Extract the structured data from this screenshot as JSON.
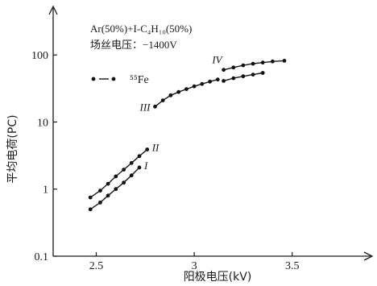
{
  "chart_data": {
    "type": "line",
    "annotations": [
      "Ar(50%)+I-C₄H₁₀(50%)",
      "场丝电压：−1400V"
    ],
    "xlabel": "阳极电压(kV)",
    "ylabel": "平均电荷(PC)",
    "x_ticks": [
      {
        "value": 2.5,
        "label": "2.5"
      },
      {
        "value": 3.0,
        "label": "3"
      },
      {
        "value": 3.5,
        "label": "3.5"
      }
    ],
    "y_scale": "log",
    "y_ticks": [
      {
        "value": 0.1,
        "label": "0.1"
      },
      {
        "value": 1,
        "label": "1"
      },
      {
        "value": 10,
        "label": "10"
      },
      {
        "value": 100,
        "label": "100"
      }
    ],
    "xlim": [
      2.28,
      3.9
    ],
    "ylim": [
      0.1,
      500
    ],
    "legend": {
      "text": "⁵⁵Fe",
      "position": "top-left"
    },
    "series": [
      {
        "name": "I",
        "x": [
          2.47,
          2.52,
          2.56,
          2.6,
          2.64,
          2.68,
          2.72
        ],
        "y": [
          0.5,
          0.63,
          0.8,
          1.0,
          1.25,
          1.6,
          2.1
        ]
      },
      {
        "name": "II",
        "x": [
          2.47,
          2.52,
          2.56,
          2.6,
          2.64,
          2.68,
          2.72,
          2.76
        ],
        "y": [
          0.75,
          0.95,
          1.2,
          1.55,
          1.95,
          2.45,
          3.1,
          3.9
        ]
      },
      {
        "name": "III",
        "x": [
          2.8,
          2.84,
          2.88,
          2.92,
          2.96,
          3.0,
          3.04,
          3.08,
          3.12
        ],
        "y": [
          17,
          21,
          25,
          28,
          31,
          34,
          37,
          40,
          43
        ]
      },
      {
        "name": "IV",
        "x": [
          3.15,
          3.2,
          3.25,
          3.3,
          3.35,
          3.4,
          3.46
        ],
        "y": [
          60,
          65,
          70,
          74,
          77,
          80,
          82
        ]
      },
      {
        "name": "",
        "x": [
          3.15,
          3.2,
          3.25,
          3.3,
          3.35
        ],
        "y": [
          41,
          45,
          48,
          51,
          54
        ]
      }
    ]
  }
}
